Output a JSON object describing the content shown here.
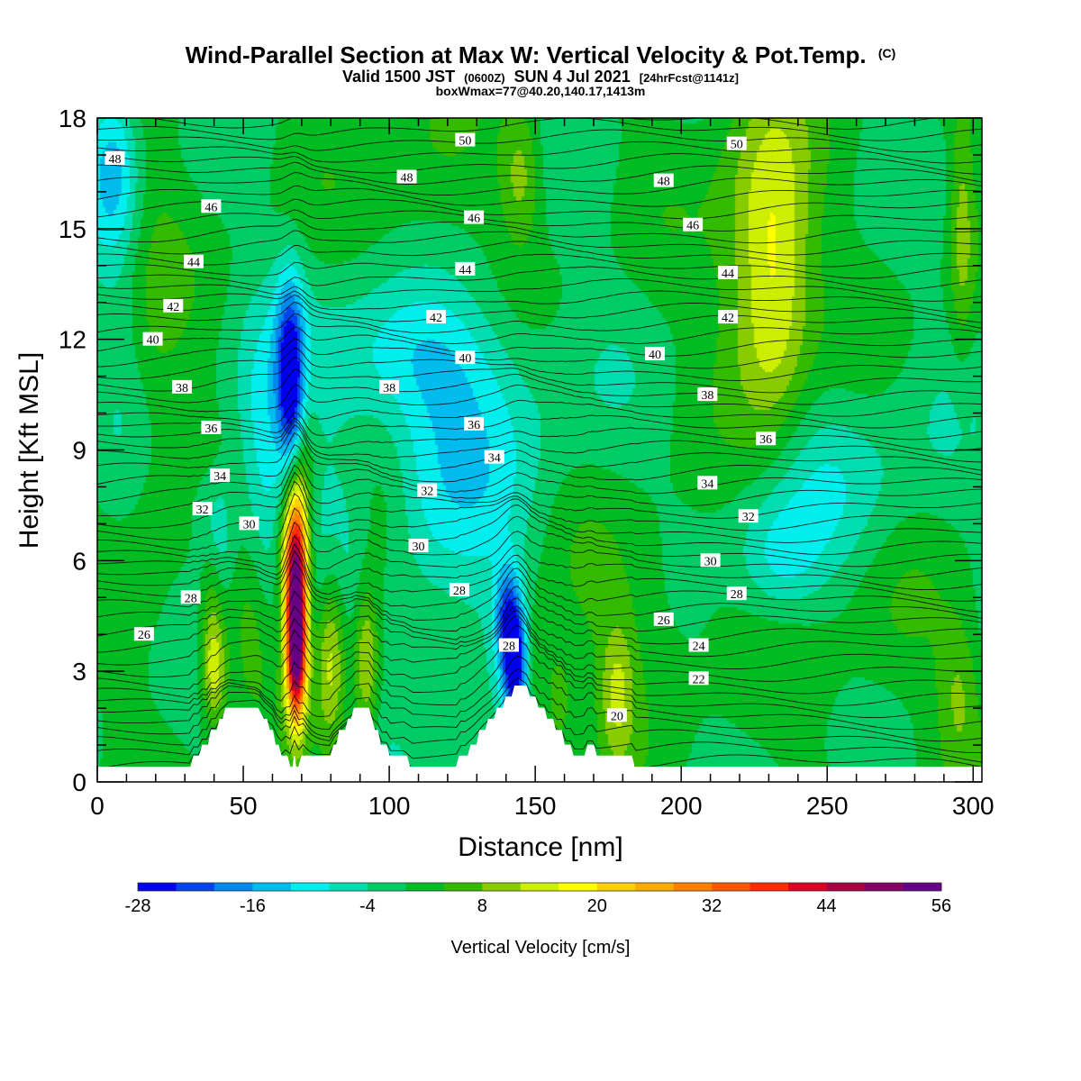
{
  "chart_data": {
    "type": "heatmap",
    "title": "Wind-Parallel Section at Max W: Vertical Velocity & Pot.Temp.",
    "title_mark": "(C)",
    "subtitle_parts": [
      "Valid 1500 JST",
      "(0600Z)",
      "SUN 4 Jul 2021",
      "[24hrFcst@1141z]"
    ],
    "subtitle2": "boxWmax=77@40.20,140.17,1413m",
    "xlabel": "Distance [nm]",
    "ylabel": "Height [Kft MSL]",
    "xlim": [
      0,
      303
    ],
    "ylim": [
      0,
      18
    ],
    "x_ticks": [
      "0",
      "50",
      "100",
      "150",
      "200",
      "250",
      "300"
    ],
    "y_ticks": [
      "0",
      "3",
      "6",
      "9",
      "12",
      "15",
      "18"
    ],
    "colorbar": {
      "label": "Vertical Velocity [cm/s]",
      "min": -28,
      "step": 4,
      "tick_labels": [
        "-28",
        "-16",
        "-4",
        "8",
        "20",
        "32",
        "44",
        "56"
      ],
      "colors": [
        "#0000ee",
        "#0044ee",
        "#0088ee",
        "#00bbee",
        "#00eeee",
        "#00ddb0",
        "#00cc66",
        "#00bb22",
        "#33bb00",
        "#88cc00",
        "#ccee00",
        "#ffff00",
        "#ffd000",
        "#ffaa00",
        "#ff7f00",
        "#ff5500",
        "#ff2a00",
        "#dd0022",
        "#aa0044",
        "#880066",
        "#660088"
      ]
    },
    "theta_contour_labels": [
      {
        "v": "48",
        "x": 6,
        "y": 16.9
      },
      {
        "v": "50",
        "x": 126,
        "y": 17.4
      },
      {
        "v": "50",
        "x": 219,
        "y": 17.3
      },
      {
        "v": "48",
        "x": 106,
        "y": 16.4
      },
      {
        "v": "48",
        "x": 194,
        "y": 16.3
      },
      {
        "v": "46",
        "x": 39,
        "y": 15.6
      },
      {
        "v": "46",
        "x": 129,
        "y": 15.3
      },
      {
        "v": "46",
        "x": 204,
        "y": 15.1
      },
      {
        "v": "44",
        "x": 33,
        "y": 14.1
      },
      {
        "v": "44",
        "x": 126,
        "y": 13.9
      },
      {
        "v": "44",
        "x": 216,
        "y": 13.8
      },
      {
        "v": "42",
        "x": 26,
        "y": 12.9
      },
      {
        "v": "42",
        "x": 116,
        "y": 12.6
      },
      {
        "v": "42",
        "x": 216,
        "y": 12.6
      },
      {
        "v": "40",
        "x": 19,
        "y": 12.0
      },
      {
        "v": "40",
        "x": 126,
        "y": 11.5
      },
      {
        "v": "40",
        "x": 191,
        "y": 11.6
      },
      {
        "v": "38",
        "x": 29,
        "y": 10.7
      },
      {
        "v": "38",
        "x": 100,
        "y": 10.7
      },
      {
        "v": "38",
        "x": 209,
        "y": 10.5
      },
      {
        "v": "36",
        "x": 39,
        "y": 9.6
      },
      {
        "v": "36",
        "x": 129,
        "y": 9.7
      },
      {
        "v": "36",
        "x": 229,
        "y": 9.3
      },
      {
        "v": "34",
        "x": 42,
        "y": 8.3
      },
      {
        "v": "34",
        "x": 136,
        "y": 8.8
      },
      {
        "v": "34",
        "x": 209,
        "y": 8.1
      },
      {
        "v": "32",
        "x": 36,
        "y": 7.4
      },
      {
        "v": "32",
        "x": 113,
        "y": 7.9
      },
      {
        "v": "32",
        "x": 223,
        "y": 7.2
      },
      {
        "v": "30",
        "x": 52,
        "y": 7.0
      },
      {
        "v": "30",
        "x": 110,
        "y": 6.4
      },
      {
        "v": "30",
        "x": 210,
        "y": 6.0
      },
      {
        "v": "28",
        "x": 32,
        "y": 5.0
      },
      {
        "v": "28",
        "x": 124,
        "y": 5.2
      },
      {
        "v": "28",
        "x": 219,
        "y": 5.1
      },
      {
        "v": "26",
        "x": 16,
        "y": 4.0
      },
      {
        "v": "26",
        "x": 194,
        "y": 4.4
      },
      {
        "v": "28",
        "x": 141,
        "y": 3.7
      },
      {
        "v": "24",
        "x": 206,
        "y": 3.7
      },
      {
        "v": "22",
        "x": 206,
        "y": 2.8
      },
      {
        "v": "20",
        "x": 178,
        "y": 1.8
      }
    ],
    "terrain": [
      [
        0,
        0.4
      ],
      [
        32,
        0.4
      ],
      [
        33,
        0.7
      ],
      [
        35,
        0.7
      ],
      [
        36,
        1.0
      ],
      [
        38,
        1.0
      ],
      [
        39,
        1.4
      ],
      [
        41,
        1.4
      ],
      [
        42,
        1.7
      ],
      [
        43,
        1.7
      ],
      [
        44,
        2.0
      ],
      [
        55,
        2.0
      ],
      [
        57,
        1.7
      ],
      [
        58,
        1.7
      ],
      [
        59,
        1.4
      ],
      [
        60,
        1.4
      ],
      [
        61,
        1.0
      ],
      [
        62,
        1.0
      ],
      [
        63,
        0.7
      ],
      [
        65,
        0.7
      ],
      [
        66,
        0.4
      ],
      [
        67,
        0.4
      ],
      [
        67.5,
        0.7
      ],
      [
        68,
        0.4
      ],
      [
        69,
        0.4
      ],
      [
        70,
        0.7
      ],
      [
        80,
        0.7
      ],
      [
        81,
        1.0
      ],
      [
        82,
        1.0
      ],
      [
        83,
        1.4
      ],
      [
        85,
        1.4
      ],
      [
        86,
        1.7
      ],
      [
        87,
        1.7
      ],
      [
        88,
        2.0
      ],
      [
        93,
        2.0
      ],
      [
        94,
        1.7
      ],
      [
        95,
        1.4
      ],
      [
        96,
        1.4
      ],
      [
        97,
        1.0
      ],
      [
        99,
        1.0
      ],
      [
        100,
        0.7
      ],
      [
        106,
        0.7
      ],
      [
        107,
        0.4
      ],
      [
        123,
        0.4
      ],
      [
        124,
        0.7
      ],
      [
        127,
        0.7
      ],
      [
        128,
        1.0
      ],
      [
        130,
        1.0
      ],
      [
        131,
        1.4
      ],
      [
        133,
        1.4
      ],
      [
        134,
        1.7
      ],
      [
        136,
        1.7
      ],
      [
        137,
        2.0
      ],
      [
        139,
        2.0
      ],
      [
        140,
        2.3
      ],
      [
        142,
        2.3
      ],
      [
        143,
        2.6
      ],
      [
        147,
        2.6
      ],
      [
        148,
        2.3
      ],
      [
        150,
        2.3
      ],
      [
        151,
        2.0
      ],
      [
        153,
        2.0
      ],
      [
        154,
        1.7
      ],
      [
        156,
        1.7
      ],
      [
        157,
        1.4
      ],
      [
        159,
        1.4
      ],
      [
        160,
        1.0
      ],
      [
        162,
        1.0
      ],
      [
        163,
        0.7
      ],
      [
        167,
        0.7
      ],
      [
        168,
        1.0
      ],
      [
        170,
        1.0
      ],
      [
        171,
        0.7
      ],
      [
        183,
        0.7
      ],
      [
        184,
        0.4
      ],
      [
        303,
        0.4
      ]
    ],
    "w_field_features": [
      {
        "x": 68,
        "y": 4.5,
        "sx": 2.6,
        "sy": 1.8,
        "w": 52
      },
      {
        "x": 68,
        "y": 3.3,
        "sx": 2.2,
        "sy": 1.0,
        "w": 18
      },
      {
        "x": 67,
        "y": 6.3,
        "sx": 3.5,
        "sy": 1.3,
        "w": 20
      },
      {
        "x": 70,
        "y": 8.8,
        "sx": 3.0,
        "sy": 1.8,
        "w": 9
      },
      {
        "x": 66,
        "y": 11.6,
        "sx": 3.5,
        "sy": 1.6,
        "w": -20
      },
      {
        "x": 67,
        "y": 10.0,
        "sx": 3.0,
        "sy": 1.2,
        "w": -12
      },
      {
        "x": 57,
        "y": 8.5,
        "sx": 7.0,
        "sy": 2.5,
        "w": -10
      },
      {
        "x": 40,
        "y": 6.8,
        "sx": 4.0,
        "sy": 1.2,
        "w": -14
      },
      {
        "x": 40,
        "y": 3.0,
        "sx": 3.0,
        "sy": 1.0,
        "w": 14
      },
      {
        "x": 39,
        "y": 5.5,
        "sx": 3.0,
        "sy": 1.8,
        "w": 10
      },
      {
        "x": 52,
        "y": 4.3,
        "sx": 5.0,
        "sy": 1.6,
        "w": 7
      },
      {
        "x": 80,
        "y": 3.5,
        "sx": 3.5,
        "sy": 1.7,
        "w": 14
      },
      {
        "x": 92,
        "y": 3.3,
        "sx": 3.0,
        "sy": 1.5,
        "w": 14
      },
      {
        "x": 97,
        "y": 7.0,
        "sx": 8.0,
        "sy": 1.8,
        "w": 8
      },
      {
        "x": 118,
        "y": 8.0,
        "sx": 28.0,
        "sy": 3.5,
        "w": -10
      },
      {
        "x": 105,
        "y": 11.5,
        "sx": 22.0,
        "sy": 1.4,
        "w": -8
      },
      {
        "x": 143,
        "y": 3.2,
        "sx": 3.0,
        "sy": 1.2,
        "w": -26
      },
      {
        "x": 140,
        "y": 4.5,
        "sx": 3.0,
        "sy": 1.0,
        "w": -15
      },
      {
        "x": 150,
        "y": 3.2,
        "sx": 3.5,
        "sy": 1.2,
        "w": 8
      },
      {
        "x": 158,
        "y": 2.2,
        "sx": 3.0,
        "sy": 1.0,
        "w": 8
      },
      {
        "x": 178,
        "y": 2.4,
        "sx": 4.0,
        "sy": 1.3,
        "w": 10
      },
      {
        "x": 232,
        "y": 13.5,
        "sx": 9.0,
        "sy": 3.0,
        "w": 14
      },
      {
        "x": 225,
        "y": 15.0,
        "sx": 12.0,
        "sy": 4.0,
        "w": 7
      },
      {
        "x": 145,
        "y": 16.5,
        "sx": 5.0,
        "sy": 1.3,
        "w": 10
      },
      {
        "x": 250,
        "y": 8.0,
        "sx": 30.0,
        "sy": 2.0,
        "w": -6
      },
      {
        "x": 233,
        "y": 6.0,
        "sx": 10.0,
        "sy": 1.2,
        "w": -8
      },
      {
        "x": 5,
        "y": 16.8,
        "sx": 6.0,
        "sy": 1.6,
        "w": -12
      },
      {
        "x": 19,
        "y": 11.0,
        "sx": 8.0,
        "sy": 5.0,
        "w": 4
      },
      {
        "x": 8,
        "y": 13.0,
        "sx": 6.0,
        "sy": 4.0,
        "w": -3
      },
      {
        "x": 110,
        "y": 15.8,
        "sx": 15.0,
        "sy": 2.0,
        "w": 5
      },
      {
        "x": 180,
        "y": 5.0,
        "sx": 25.0,
        "sy": 2.0,
        "w": 5
      },
      {
        "x": 270,
        "y": 4.0,
        "sx": 15.0,
        "sy": 2.0,
        "w": 4
      },
      {
        "x": 295,
        "y": 2.5,
        "sx": 5.0,
        "sy": 1.5,
        "w": 7
      },
      {
        "x": 296,
        "y": 15.0,
        "sx": 3.0,
        "sy": 2.5,
        "w": 9
      }
    ]
  }
}
